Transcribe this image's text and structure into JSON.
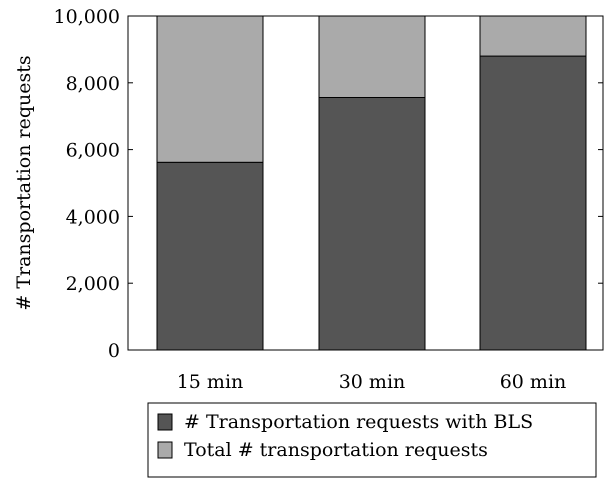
{
  "chart_data": {
    "type": "bar",
    "stacked": true,
    "categories": [
      "15 min",
      "30 min",
      "60 min"
    ],
    "series": [
      {
        "name": "# Transportation requests with BLS",
        "values": [
          5620,
          7560,
          8800
        ],
        "color": "#555555"
      },
      {
        "name": "Total # transportation requests",
        "values": [
          4380,
          2440,
          1200
        ],
        "color": "#aaaaaa"
      }
    ],
    "ylabel": "# Transportation requests",
    "xlabel": "",
    "ylim": [
      0,
      10000
    ],
    "yticks": [
      0,
      2000,
      4000,
      6000,
      8000,
      10000
    ],
    "ytick_labels": [
      "0",
      "2,000",
      "4,000",
      "6,000",
      "8,000",
      "10,000"
    ],
    "grid": false,
    "legend_position": "bottom"
  }
}
